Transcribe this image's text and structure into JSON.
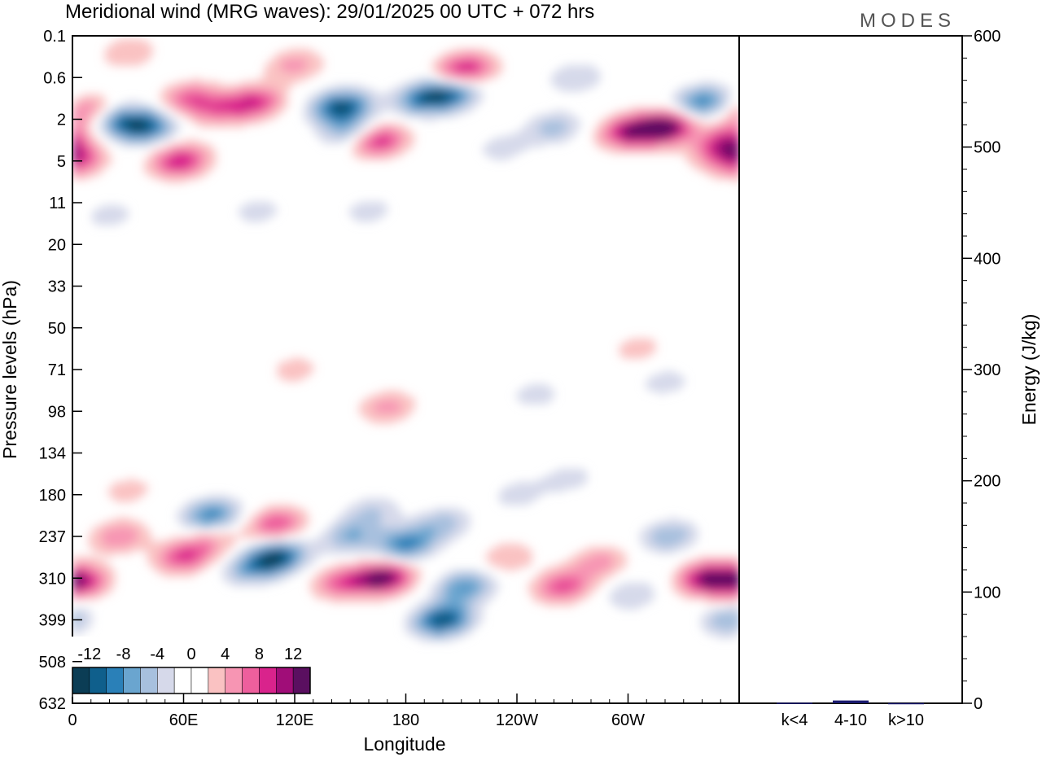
{
  "colors": {
    "contour_levels": [
      "#0b3d55",
      "#0f5f8c",
      "#2a80b8",
      "#6aa5cf",
      "#a7c0de",
      "#d6d9ea",
      "#ffffff",
      "#ffffff",
      "#fac2c2",
      "#f795b3",
      "#ee5f9d",
      "#d9238c",
      "#a00d78",
      "#5a0f60"
    ],
    "frame": "#000000",
    "bar_fill": "#1a1a6e"
  },
  "chart_data": [
    {
      "type": "heatmap",
      "title": "Meridional wind (MRG waves):  29/01/2025  00 UTC  + 072 hrs",
      "xlabel": "Longitude",
      "ylabel": "Pressure levels (hPa)",
      "x_ticks": [
        "0",
        "60E",
        "120E",
        "180",
        "120W",
        "60W"
      ],
      "x_tick_degrees": [
        0,
        60,
        120,
        180,
        240,
        300
      ],
      "xlim": [
        0,
        360
      ],
      "y_ticks": [
        "0.1",
        "0.6",
        "2",
        "5",
        "11",
        "20",
        "33",
        "50",
        "71",
        "98",
        "134",
        "180",
        "237",
        "310",
        "399",
        "508",
        "632"
      ],
      "y_reversed": true,
      "colorbar": {
        "labels": [
          "-12",
          "-8",
          "-4",
          "0",
          "4",
          "8",
          "12"
        ],
        "levels": [
          -14,
          -12,
          -10,
          -8,
          -6,
          -4,
          -2,
          0,
          2,
          4,
          6,
          8,
          10,
          12,
          14
        ],
        "placement": "bottom-left inset"
      },
      "blobs": [
        {
          "lon": 110,
          "lev": 12.5,
          "v": -12
        },
        {
          "lon": 95,
          "lev": 12.8,
          "v": -5
        },
        {
          "lon": 200,
          "lev": 14,
          "v": -12
        },
        {
          "lon": 212,
          "lev": 13.2,
          "v": -8
        },
        {
          "lon": 168,
          "lev": 13,
          "v": 13
        },
        {
          "lon": 145,
          "lev": 13.1,
          "v": 7
        },
        {
          "lon": 180,
          "lev": 12.2,
          "v": -9
        },
        {
          "lon": 200,
          "lev": 11.7,
          "v": -5
        },
        {
          "lon": 235,
          "lev": 12.5,
          "v": 4
        },
        {
          "lon": 265,
          "lev": 13.2,
          "v": 8
        },
        {
          "lon": 285,
          "lev": 12.6,
          "v": 5
        },
        {
          "lon": 302,
          "lev": 13.4,
          "v": -4
        },
        {
          "lon": 355,
          "lev": 14,
          "v": -6
        },
        {
          "lon": 3,
          "lev": 13.1,
          "v": 11
        },
        {
          "lon": 25,
          "lev": 12.0,
          "v": 6
        },
        {
          "lon": 60,
          "lev": 12.5,
          "v": 8
        },
        {
          "lon": 75,
          "lev": 12.1,
          "v": 4
        },
        {
          "lon": 150,
          "lev": 12,
          "v": -6
        },
        {
          "lon": 162,
          "lev": 11.4,
          "v": -4
        },
        {
          "lon": 110,
          "lev": 11.7,
          "v": 8
        },
        {
          "lon": 75,
          "lev": 11.5,
          "v": -9
        },
        {
          "lon": 343,
          "lev": 13.0,
          "v": 12
        },
        {
          "lon": 322,
          "lev": 12.0,
          "v": -6
        },
        {
          "lon": 30,
          "lev": 10.9,
          "v": 3
        },
        {
          "lon": 240,
          "lev": 11.0,
          "v": -3
        },
        {
          "lon": 268,
          "lev": 10.6,
          "v": -3
        },
        {
          "lon": 170,
          "lev": 8.9,
          "v": 5
        },
        {
          "lon": 250,
          "lev": 8.6,
          "v": -3
        },
        {
          "lon": 120,
          "lev": 8.0,
          "v": 3
        },
        {
          "lon": 320,
          "lev": 8.3,
          "v": -3
        },
        {
          "lon": 305,
          "lev": 7.5,
          "v": 3
        },
        {
          "lon": 20,
          "lev": 4.3,
          "v": -3
        },
        {
          "lon": 180,
          "lev": 6.1,
          "v": -2
        },
        {
          "lon": 2,
          "lev": 3.0,
          "v": 8
        },
        {
          "lon": 8,
          "lev": 1.8,
          "v": 7
        },
        {
          "lon": 25,
          "lev": 2.0,
          "v": -8
        },
        {
          "lon": 40,
          "lev": 2.2,
          "v": -10
        },
        {
          "lon": 58,
          "lev": 3.0,
          "v": 10
        },
        {
          "lon": 63,
          "lev": 1.5,
          "v": 7
        },
        {
          "lon": 78,
          "lev": 1.8,
          "v": 5
        },
        {
          "lon": 98,
          "lev": 1.6,
          "v": 9
        },
        {
          "lon": 120,
          "lev": 0.7,
          "v": 5
        },
        {
          "lon": 145,
          "lev": 1.7,
          "v": -12
        },
        {
          "lon": 150,
          "lev": 2.3,
          "v": -6
        },
        {
          "lon": 165,
          "lev": 2.5,
          "v": 10
        },
        {
          "lon": 190,
          "lev": 1.5,
          "v": -9
        },
        {
          "lon": 205,
          "lev": 1.4,
          "v": -8
        },
        {
          "lon": 212,
          "lev": 0.8,
          "v": 10
        },
        {
          "lon": 232,
          "lev": 2.7,
          "v": -3
        },
        {
          "lon": 260,
          "lev": 2.2,
          "v": -5
        },
        {
          "lon": 272,
          "lev": 1.0,
          "v": -4
        },
        {
          "lon": 300,
          "lev": 2.3,
          "v": 10
        },
        {
          "lon": 320,
          "lev": 2.2,
          "v": 14
        },
        {
          "lon": 340,
          "lev": 1.6,
          "v": -9
        },
        {
          "lon": 348,
          "lev": 2.8,
          "v": 4
        },
        {
          "lon": 355,
          "lev": 2.5,
          "v": 8
        },
        {
          "lon": 30,
          "lev": 0.4,
          "v": 4
        },
        {
          "lon": 100,
          "lev": 4.2,
          "v": -3
        },
        {
          "lon": 160,
          "lev": 4.2,
          "v": -3
        }
      ]
    },
    {
      "type": "bar",
      "categories": [
        "k<4",
        "4-10",
        "k>10"
      ],
      "values": [
        0.5,
        2.5,
        0.2
      ],
      "ylabel": "Energy (J/kg)",
      "ylim": [
        0,
        600
      ],
      "y_ticks": [
        "0",
        "100",
        "200",
        "300",
        "400",
        "500",
        "600"
      ],
      "y_axis_side": "right"
    }
  ],
  "branding": {
    "logo": "MODES"
  }
}
